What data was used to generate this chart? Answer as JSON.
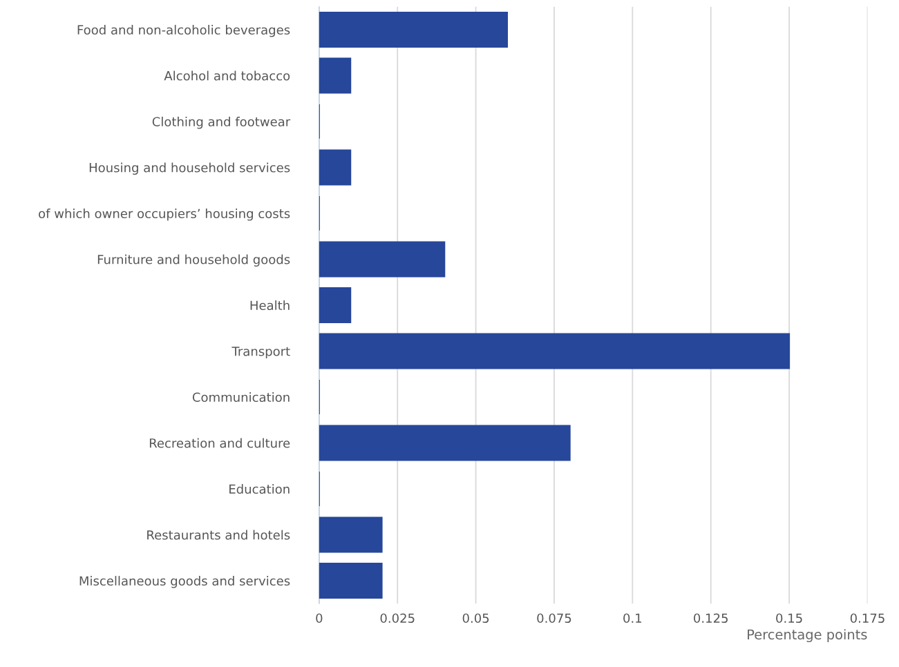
{
  "chart_data": {
    "type": "bar",
    "orientation": "horizontal",
    "categories": [
      "Food and non-alcoholic beverages",
      "Alcohol and tobacco",
      "Clothing and footwear",
      "Housing and household services",
      "of which owner occupiers’ housing costs",
      "Furniture and household goods",
      "Health",
      "Transport",
      "Communication",
      "Recreation and culture",
      "Education",
      "Restaurants and hotels",
      "Miscellaneous goods and services"
    ],
    "values": [
      0.06,
      0.01,
      0,
      0.01,
      0,
      0.04,
      0.01,
      0.15,
      0,
      0.08,
      0,
      0.02,
      0.02
    ],
    "color": "#27479a",
    "xlim": [
      0,
      0.175
    ],
    "xticks": [
      0,
      0.025,
      0.05,
      0.075,
      0.1,
      0.125,
      0.15,
      0.175
    ],
    "xlabel": "Percentage points",
    "grid": "x",
    "legend": false
  }
}
